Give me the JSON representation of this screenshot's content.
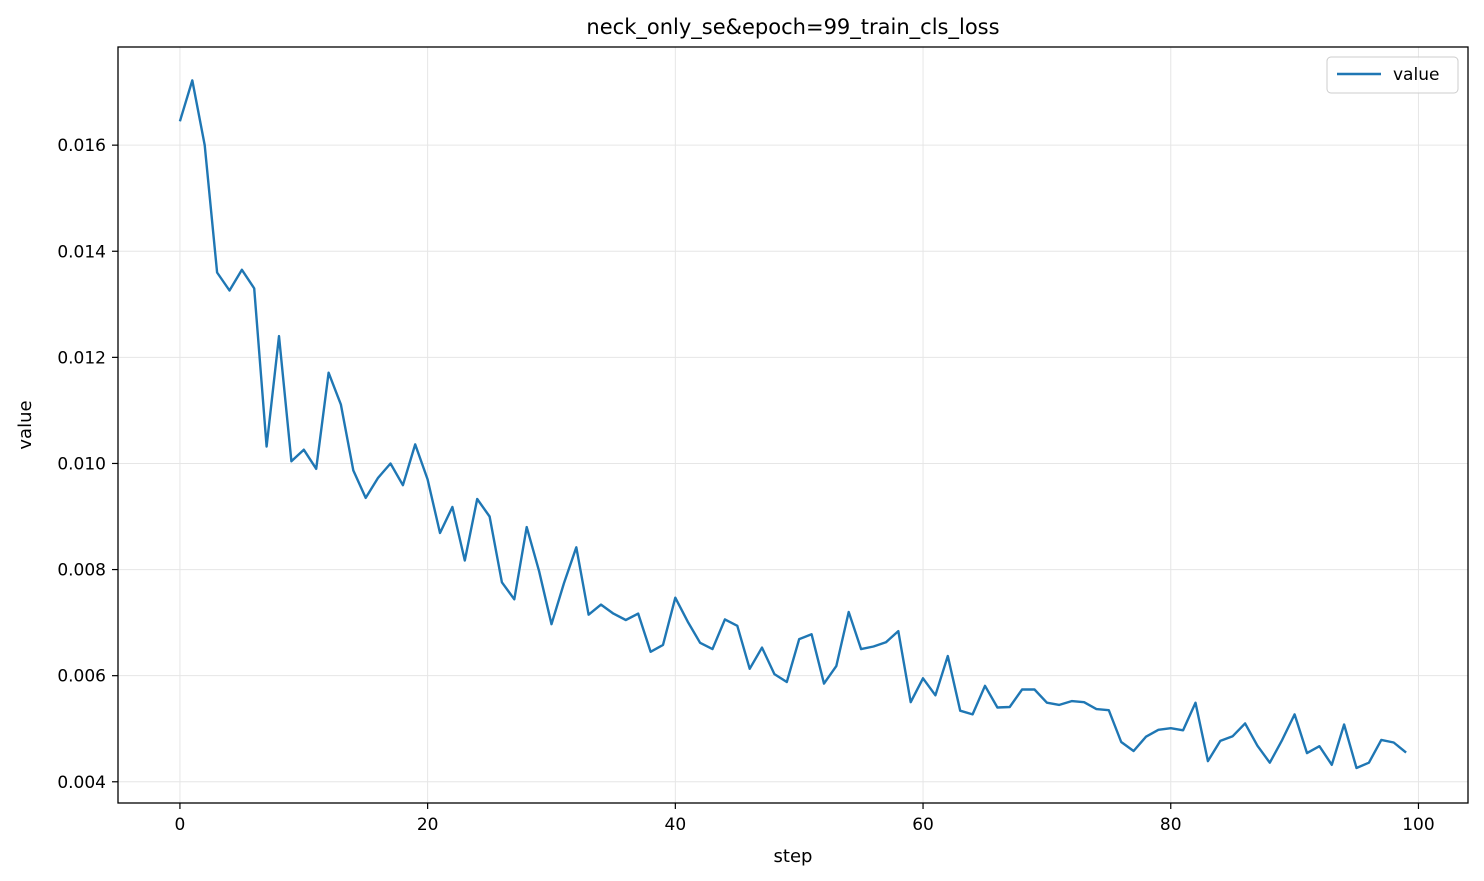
{
  "chart_data": {
    "type": "line",
    "title": "neck_only_se&epoch=99_train_cls_loss",
    "xlabel": "step",
    "ylabel": "value",
    "xlim": [
      -5,
      104
    ],
    "ylim": [
      0.0036,
      0.01785
    ],
    "xticks": [
      0,
      20,
      40,
      60,
      80,
      100
    ],
    "xtick_labels": [
      "0",
      "20",
      "40",
      "60",
      "80",
      "100"
    ],
    "yticks": [
      0.004,
      0.006,
      0.008,
      0.01,
      0.012,
      0.014,
      0.016
    ],
    "ytick_labels": [
      "0.004",
      "0.006",
      "0.008",
      "0.010",
      "0.012",
      "0.014",
      "0.016"
    ],
    "grid": true,
    "legend_position": "upper right",
    "series": [
      {
        "name": "value",
        "color": "#1f77b4",
        "x": [
          0,
          1,
          2,
          3,
          4,
          5,
          6,
          7,
          8,
          9,
          10,
          11,
          12,
          13,
          14,
          15,
          16,
          17,
          18,
          19,
          20,
          21,
          22,
          23,
          24,
          25,
          26,
          27,
          28,
          29,
          30,
          31,
          32,
          33,
          34,
          35,
          36,
          37,
          38,
          39,
          40,
          41,
          42,
          43,
          44,
          45,
          46,
          47,
          48,
          49,
          50,
          51,
          52,
          53,
          54,
          55,
          56,
          57,
          58,
          59,
          60,
          61,
          62,
          63,
          64,
          65,
          66,
          67,
          68,
          69,
          70,
          71,
          72,
          73,
          74,
          75,
          76,
          77,
          78,
          79,
          80,
          81,
          82,
          83,
          84,
          85,
          86,
          87,
          88,
          89,
          90,
          91,
          92,
          93,
          94,
          95,
          96,
          97,
          98,
          99
        ],
        "values": [
          0.01645,
          0.01722,
          0.016,
          0.0136,
          0.01326,
          0.01365,
          0.0133,
          0.01032,
          0.0124,
          0.01004,
          0.01026,
          0.0099,
          0.01171,
          0.01111,
          0.00987,
          0.00935,
          0.00973,
          0.01,
          0.00959,
          0.01036,
          0.0097,
          0.00869,
          0.00918,
          0.00817,
          0.00933,
          0.009,
          0.00776,
          0.00744,
          0.0088,
          0.00797,
          0.00697,
          0.00774,
          0.00842,
          0.00715,
          0.00734,
          0.00717,
          0.00705,
          0.00717,
          0.00645,
          0.00658,
          0.00747,
          0.00702,
          0.00662,
          0.0065,
          0.00706,
          0.00694,
          0.00613,
          0.00653,
          0.00603,
          0.00588,
          0.00669,
          0.00678,
          0.00585,
          0.00618,
          0.0072,
          0.0065,
          0.00655,
          0.00663,
          0.00684,
          0.0055,
          0.00595,
          0.00563,
          0.00637,
          0.00534,
          0.00527,
          0.00581,
          0.0054,
          0.00541,
          0.00574,
          0.00574,
          0.00549,
          0.00545,
          0.00552,
          0.0055,
          0.00537,
          0.00535,
          0.00475,
          0.00458,
          0.00485,
          0.00498,
          0.00501,
          0.00497,
          0.00549,
          0.00439,
          0.00477,
          0.00486,
          0.0051,
          0.00468,
          0.00436,
          0.00479,
          0.00527,
          0.00454,
          0.00467,
          0.00432,
          0.00508,
          0.00426,
          0.00436,
          0.00479,
          0.00474,
          0.00455
        ]
      }
    ]
  }
}
